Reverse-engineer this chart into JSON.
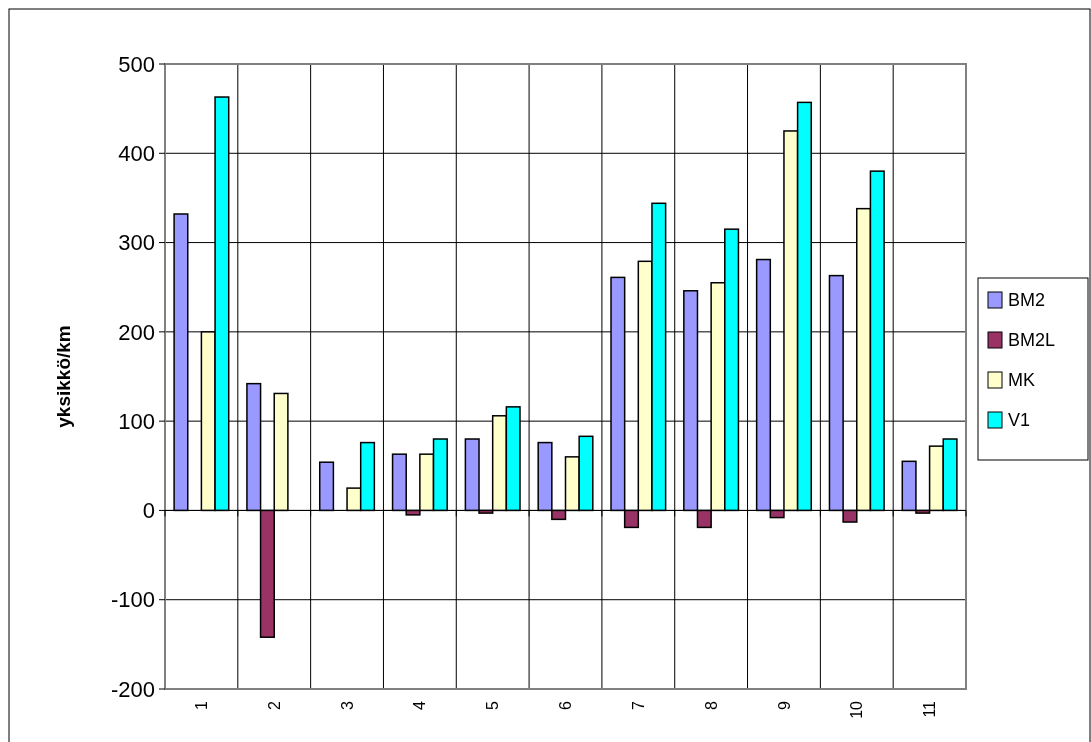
{
  "chart_data": {
    "type": "bar",
    "ylabel": "yksikkö/km",
    "categories": [
      "1",
      "2",
      "3",
      "4",
      "5",
      "6",
      "7",
      "8",
      "9",
      "10",
      "11"
    ],
    "series": [
      {
        "name": "BM2",
        "color": "#9999ff",
        "values": [
          332,
          142,
          54,
          63,
          80,
          76,
          261,
          246,
          281,
          263,
          55
        ]
      },
      {
        "name": "BM2L",
        "color": "#993366",
        "values": [
          null,
          -142,
          null,
          -5,
          -3,
          -10,
          -19,
          -19,
          -8,
          -13,
          -3
        ]
      },
      {
        "name": "MK",
        "color": "#ffffcc",
        "values": [
          200,
          131,
          25,
          63,
          106,
          60,
          279,
          255,
          425,
          338,
          72
        ]
      },
      {
        "name": "V1",
        "color": "#00ffff",
        "values": [
          463,
          null,
          76,
          80,
          116,
          83,
          344,
          315,
          457,
          380,
          80
        ]
      }
    ],
    "ylim": [
      -200,
      500
    ],
    "yticks": [
      -200,
      -100,
      0,
      100,
      200,
      300,
      400,
      500
    ],
    "grid": true,
    "legend": "right"
  }
}
